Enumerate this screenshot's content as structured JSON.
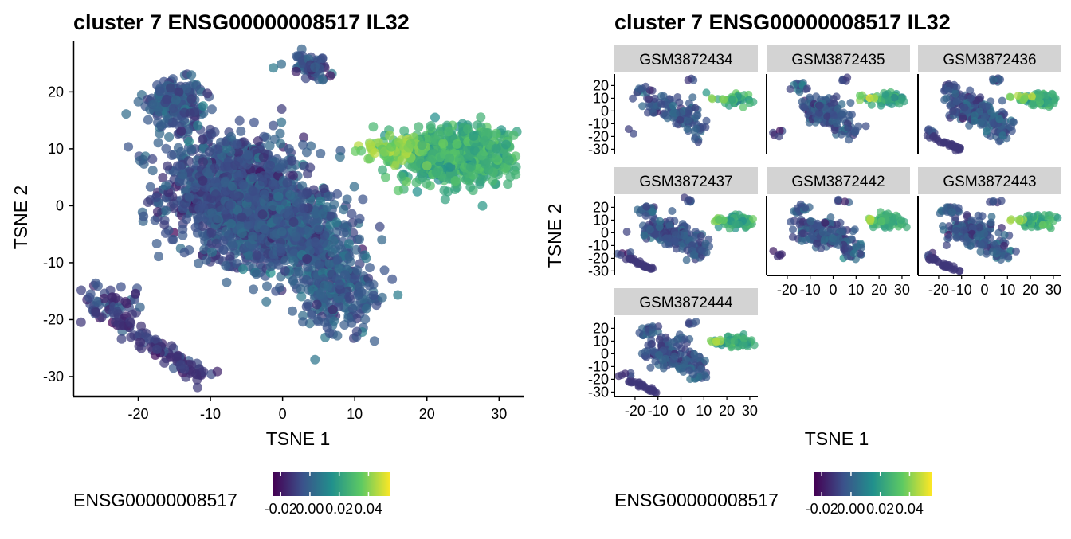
{
  "chart_data": [
    {
      "type": "scatter",
      "title": "cluster 7 ENSG00000008517 IL32",
      "xlabel": "TSNE 1",
      "ylabel": "TSNE 2",
      "xlim": [
        -29,
        33.5
      ],
      "ylim": [
        -33.5,
        29
      ],
      "x_ticks": [
        -20,
        -10,
        0,
        10,
        20,
        30
      ],
      "y_ticks": [
        -30,
        -20,
        -10,
        0,
        10,
        20
      ],
      "x_tick_labels": [
        "-20",
        "-10",
        "0",
        "10",
        "20",
        "30"
      ],
      "y_tick_labels": [
        "-30",
        "-20",
        "-10",
        "0",
        "10",
        "20"
      ],
      "color_legend": {
        "title": "ENSG00000008517",
        "palette": "viridis",
        "colors": [
          "#440154",
          "#3b528b",
          "#21908c",
          "#5dc963",
          "#fde725"
        ],
        "range": [
          -0.025,
          0.055
        ],
        "ticks": [
          -0.02,
          0.0,
          0.02,
          0.04
        ],
        "tick_labels": [
          "-0.02",
          "0.00",
          "0.02",
          "0.04"
        ],
        "position": "bottom"
      },
      "clusters": [
        {
          "cx": -7,
          "cy": 3,
          "sx": 5,
          "sy": 5,
          "n": 900,
          "value": -0.005
        },
        {
          "cx": -3,
          "cy": -3,
          "sx": 4,
          "sy": 4,
          "n": 500,
          "value": -0.004
        },
        {
          "cx": 4,
          "cy": -6,
          "sx": 3,
          "sy": 5,
          "n": 300,
          "value": -0.003
        },
        {
          "cx": 8,
          "cy": -15,
          "sx": 3,
          "sy": 4,
          "n": 250,
          "value": -0.002
        },
        {
          "cx": -15,
          "cy": 18,
          "sx": 2,
          "sy": 2,
          "n": 200,
          "value": -0.003
        },
        {
          "cx": 4,
          "cy": 24.5,
          "sx": 1.5,
          "sy": 1,
          "n": 60,
          "value": -0.006
        },
        {
          "cx": 24,
          "cy": 9,
          "sx": 4,
          "sy": 2.5,
          "n": 650,
          "value": 0.025
        },
        {
          "cx": 16,
          "cy": 10,
          "sx": 2.5,
          "sy": 1,
          "n": 80,
          "value": 0.04
        },
        {
          "cx": -24,
          "cy": -17,
          "sx": 2,
          "sy": 2,
          "n": 60,
          "value": -0.01
        }
      ],
      "segments": [
        {
          "x0": -23,
          "y0": -20,
          "x1": -11,
          "y1": -30,
          "n": 90,
          "value": -0.012
        }
      ]
    },
    {
      "type": "scatter",
      "title": "cluster 7 ENSG00000008517 IL32",
      "xlabel": "TSNE 1",
      "ylabel": "TSNE 2",
      "facet_by": "sample",
      "xlim": [
        -29,
        33.5
      ],
      "ylim": [
        -33.5,
        29
      ],
      "x_ticks": [
        -20,
        -10,
        0,
        10,
        20,
        30
      ],
      "y_ticks": [
        -30,
        -20,
        -10,
        0,
        10,
        20
      ],
      "x_tick_labels": [
        "-20",
        "-10",
        "0",
        "10",
        "20",
        "30"
      ],
      "y_tick_labels": [
        "-30",
        "-20",
        "-10",
        "0",
        "10",
        "20"
      ],
      "panels": [
        {
          "name": "GSM3872434",
          "density": 0.22,
          "has_tail": false
        },
        {
          "name": "GSM3872435",
          "density": 0.3,
          "has_tail": false
        },
        {
          "name": "GSM3872436",
          "density": 0.5,
          "has_tail": true
        },
        {
          "name": "GSM3872437",
          "density": 0.4,
          "has_tail": true
        },
        {
          "name": "GSM3872442",
          "density": 0.35,
          "has_tail": false
        },
        {
          "name": "GSM3872443",
          "density": 0.35,
          "has_tail": true
        },
        {
          "name": "GSM3872444",
          "density": 0.35,
          "has_tail": true
        }
      ],
      "color_legend": {
        "title": "ENSG00000008517",
        "palette": "viridis",
        "colors": [
          "#440154",
          "#3b528b",
          "#21908c",
          "#5dc963",
          "#fde725"
        ],
        "range": [
          -0.025,
          0.055
        ],
        "ticks": [
          -0.02,
          0.0,
          0.02,
          0.04
        ],
        "tick_labels": [
          "-0.02",
          "0.00",
          "0.02",
          "0.04"
        ],
        "position": "bottom"
      }
    }
  ]
}
